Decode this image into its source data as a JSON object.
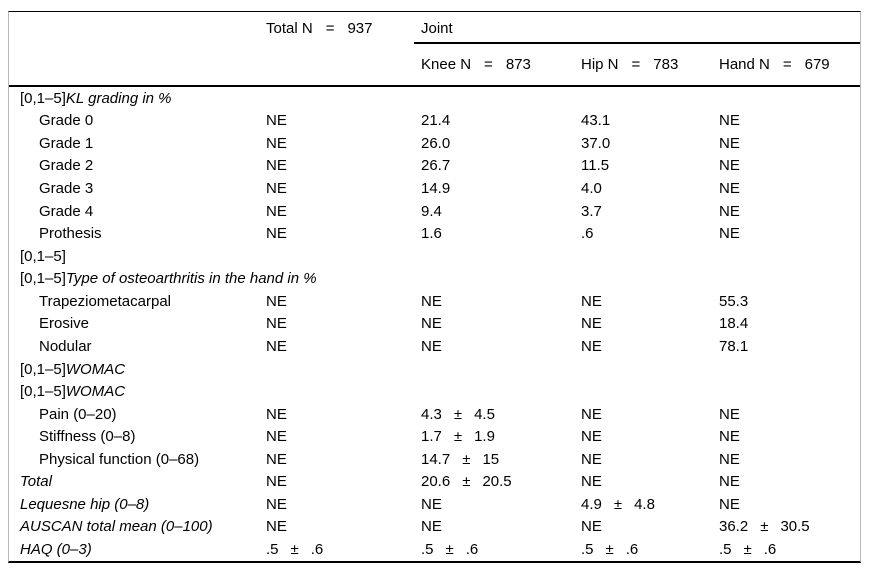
{
  "pm_symbol": "±",
  "header": {
    "total": {
      "label": "Total N",
      "eq": "=",
      "value": "937"
    },
    "joint_label": "Joint",
    "columns": [
      {
        "label": "Knee N",
        "eq": "=",
        "value": "873"
      },
      {
        "label": "Hip N",
        "eq": "=",
        "value": "783"
      },
      {
        "label": "Hand N",
        "eq": "=",
        "value": "679"
      }
    ]
  },
  "rows": [
    {
      "prefix": "[0,1–5]",
      "label": "KL grading in %",
      "italic": true,
      "indent": 0,
      "cells": [
        "",
        "",
        "",
        ""
      ]
    },
    {
      "prefix": "",
      "label": "Grade 0",
      "italic": false,
      "indent": 1,
      "cells": [
        "NE",
        "21.4",
        "43.1",
        "NE"
      ]
    },
    {
      "prefix": "",
      "label": "Grade 1",
      "italic": false,
      "indent": 1,
      "cells": [
        "NE",
        "26.0",
        "37.0",
        "NE"
      ]
    },
    {
      "prefix": "",
      "label": "Grade 2",
      "italic": false,
      "indent": 1,
      "cells": [
        "NE",
        "26.7",
        "11.5",
        "NE"
      ]
    },
    {
      "prefix": "",
      "label": "Grade 3",
      "italic": false,
      "indent": 1,
      "cells": [
        "NE",
        "14.9",
        "4.0",
        "NE"
      ]
    },
    {
      "prefix": "",
      "label": "Grade 4",
      "italic": false,
      "indent": 1,
      "cells": [
        "NE",
        "9.4",
        "3.7",
        "NE"
      ]
    },
    {
      "prefix": "",
      "label": "Prothesis",
      "italic": false,
      "indent": 1,
      "cells": [
        "NE",
        "1.6",
        ".6",
        "NE"
      ]
    },
    {
      "prefix": "[0,1–5]",
      "label": "",
      "italic": false,
      "indent": 0,
      "cells": [
        "",
        "",
        "",
        ""
      ]
    },
    {
      "prefix": "[0,1–5]",
      "label": "Type of osteoarthritis in the hand in %",
      "italic": true,
      "indent": 0,
      "cells": [
        "",
        "",
        "",
        ""
      ]
    },
    {
      "prefix": "",
      "label": "Trapeziometacarpal",
      "italic": false,
      "indent": 1,
      "cells": [
        "NE",
        "NE",
        "NE",
        "55.3"
      ]
    },
    {
      "prefix": "",
      "label": "Erosive",
      "italic": false,
      "indent": 1,
      "cells": [
        "NE",
        "NE",
        "NE",
        "18.4"
      ]
    },
    {
      "prefix": "",
      "label": "Nodular",
      "italic": false,
      "indent": 1,
      "cells": [
        "NE",
        "NE",
        "NE",
        "78.1"
      ]
    },
    {
      "prefix": "[0,1–5]",
      "label": "WOMAC",
      "italic": true,
      "indent": 0,
      "cells": [
        "",
        "",
        "",
        ""
      ]
    },
    {
      "prefix": "[0,1–5]",
      "label": "WOMAC",
      "italic": true,
      "indent": 0,
      "cells": [
        "",
        "",
        "",
        ""
      ]
    },
    {
      "prefix": "",
      "label": "Pain (0–20)",
      "italic": false,
      "indent": 1,
      "cells": [
        "NE",
        [
          "4.3",
          "4.5"
        ],
        "NE",
        "NE"
      ]
    },
    {
      "prefix": "",
      "label": "Stiffness (0–8)",
      "italic": false,
      "indent": 1,
      "cells": [
        "NE",
        [
          "1.7",
          "1.9"
        ],
        "NE",
        "NE"
      ]
    },
    {
      "prefix": "",
      "label": "Physical function (0–68)",
      "italic": false,
      "indent": 1,
      "cells": [
        "NE",
        [
          "14.7",
          "15"
        ],
        "NE",
        "NE"
      ]
    },
    {
      "prefix": "",
      "label": "Total",
      "italic": true,
      "indent": 0,
      "cells": [
        "NE",
        [
          "20.6",
          "20.5"
        ],
        "NE",
        "NE"
      ]
    },
    {
      "prefix": "",
      "label": "Lequesne hip (0–8)",
      "italic": true,
      "indent": 0,
      "cells": [
        "NE",
        "NE",
        [
          "4.9",
          "4.8"
        ],
        "NE"
      ]
    },
    {
      "prefix": "",
      "label": "AUSCAN total mean (0–100)",
      "italic": true,
      "indent": 0,
      "cells": [
        "NE",
        "NE",
        "NE",
        [
          "36.2",
          "30.5"
        ]
      ]
    },
    {
      "prefix": "",
      "label": "HAQ (0–3)",
      "italic": true,
      "indent": 0,
      "cells": [
        [
          ".5",
          ".6"
        ],
        [
          ".5",
          ".6"
        ],
        [
          ".5",
          ".6"
        ],
        [
          ".5",
          ".6"
        ]
      ]
    }
  ]
}
